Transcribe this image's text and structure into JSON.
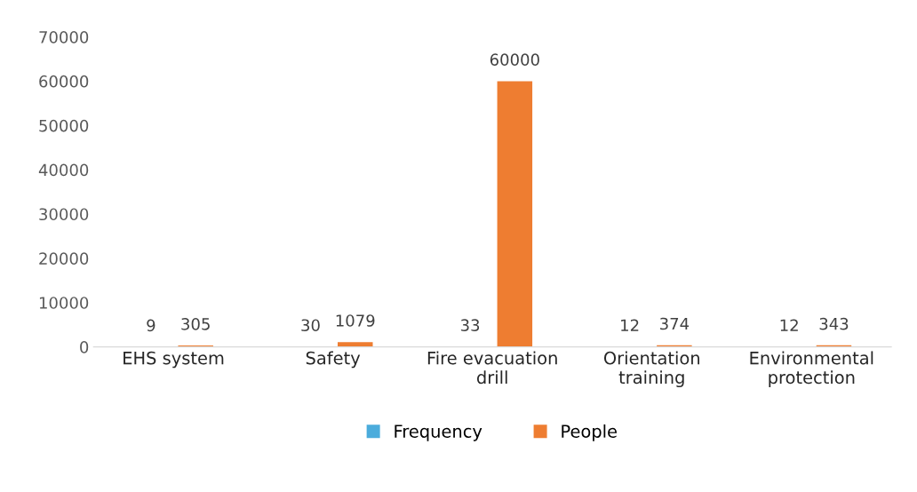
{
  "chart_data": {
    "type": "bar",
    "categories": [
      "EHS system",
      "Safety",
      "Fire evacuation drill",
      "Orientation training",
      "Environmental protection"
    ],
    "series": [
      {
        "name": "Frequency",
        "color": "#4bacdc",
        "values": [
          9,
          30,
          33,
          12,
          12
        ]
      },
      {
        "name": "People",
        "color": "#ee7d31",
        "values": [
          305,
          1079,
          60000,
          374,
          343
        ]
      }
    ],
    "ylim": [
      0,
      70000
    ],
    "yticks": [
      0,
      10000,
      20000,
      30000,
      40000,
      50000,
      60000,
      70000
    ],
    "data_labels": true,
    "grid": false,
    "legend": "bottom"
  }
}
